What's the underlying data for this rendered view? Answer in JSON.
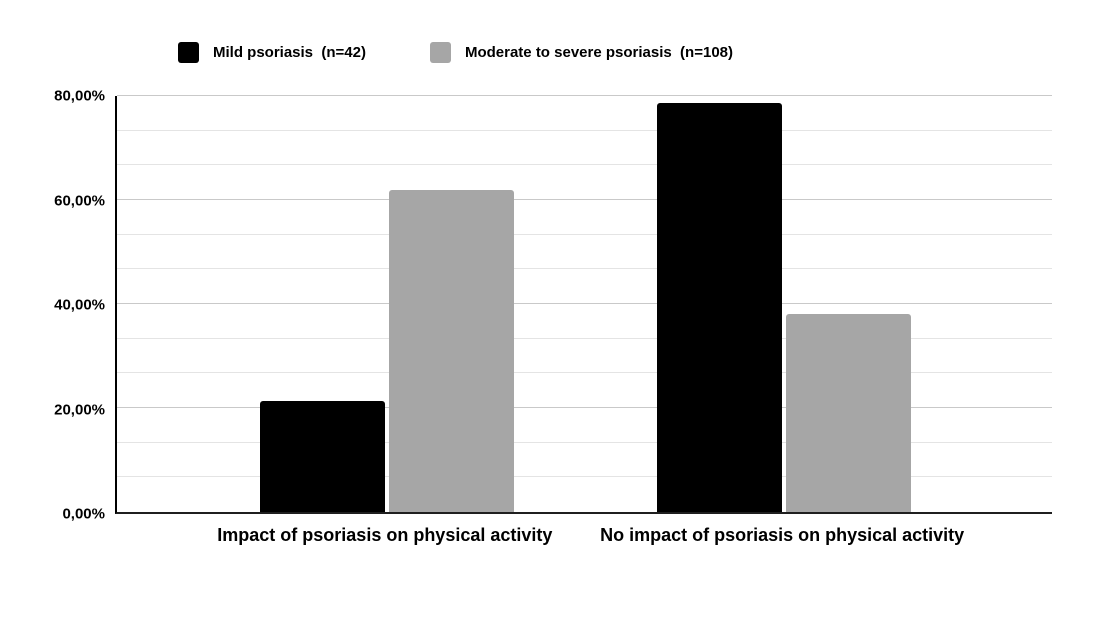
{
  "legend": {
    "items": [
      {
        "label": "Mild psoriasis  (n=42)",
        "color": "#000000"
      },
      {
        "label": "Moderate to severe psoriasis  (n=108)",
        "color": "#a6a6a6"
      }
    ]
  },
  "chart_data": {
    "type": "bar",
    "categories": [
      "Impact of psoriasis on physical activity",
      "No impact of psoriasis on physical activity"
    ],
    "series": [
      {
        "name": "Mild psoriasis  (n=42)",
        "color": "#000000",
        "values": [
          21.4,
          78.6
        ]
      },
      {
        "name": "Moderate to severe psoriasis  (n=108)",
        "color": "#a6a6a6",
        "values": [
          62.0,
          38.0
        ]
      }
    ],
    "title": "",
    "xlabel": "",
    "ylabel": "",
    "ylim": [
      0,
      80
    ],
    "y_ticks": [
      {
        "value": 0,
        "label": "0,00%"
      },
      {
        "value": 20,
        "label": "20,00%"
      },
      {
        "value": 40,
        "label": "40,00%"
      },
      {
        "value": 60,
        "label": "60,00%"
      },
      {
        "value": 80,
        "label": "80,00%"
      }
    ],
    "y_minor_gridline_step": 6.67,
    "y_major_gridline_step": 20,
    "grid": "horizontal",
    "legend_position": "top",
    "decimal_separator": ","
  },
  "colors": {
    "background": "#ffffff",
    "axis_line": "#000000",
    "gridline_major": "#c9c9c9",
    "gridline_minor": "#e4e4e4",
    "text": "#000000"
  }
}
